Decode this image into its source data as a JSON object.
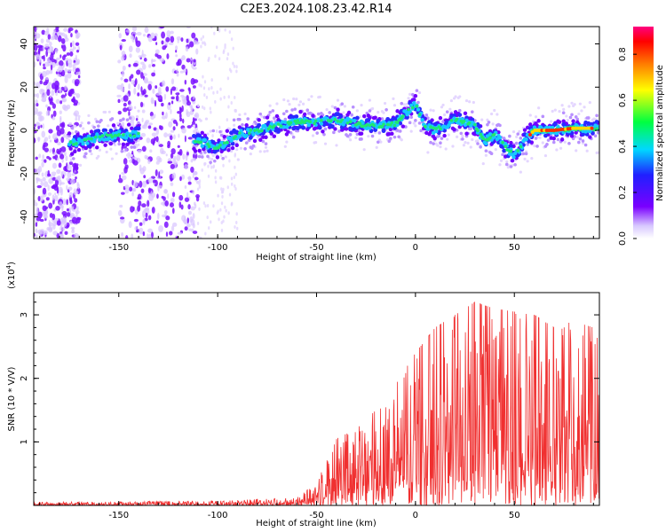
{
  "title": "C2E3.2024.108.23.42.R14",
  "chart_data": [
    {
      "type": "heatmap",
      "xlabel": "Height of straight line (km)",
      "ylabel": "Frequency (Hz)",
      "xlim": [
        -193,
        93
      ],
      "ylim": [
        -50,
        48
      ],
      "x_ticks": [
        -150,
        -100,
        -50,
        0,
        50
      ],
      "y_ticks": [
        -40,
        -20,
        0,
        20,
        40
      ],
      "colorbar": {
        "label": "Normalized spectral amplitude",
        "range": [
          0,
          0.92
        ],
        "ticks": [
          0.0,
          0.2,
          0.4,
          0.6,
          0.8
        ],
        "colormap": "rainbow"
      },
      "trace": {
        "x": [
          -172,
          -160,
          -150,
          -140,
          -110,
          -100,
          -90,
          -80,
          -70,
          -60,
          -50,
          -40,
          -30,
          -20,
          -10,
          -5,
          0,
          5,
          10,
          20,
          30,
          35,
          40,
          50,
          55,
          60,
          70,
          80,
          90
        ],
        "y": [
          -6,
          -3,
          -2,
          -2,
          -5,
          -8,
          -2,
          0,
          2,
          4,
          4,
          5,
          3,
          2,
          3,
          8,
          12,
          2,
          0,
          5,
          2,
          -5,
          -2,
          -12,
          -5,
          0,
          0,
          1,
          1
        ]
      },
      "background_regions_x": [
        [
          -193,
          -170
        ],
        [
          -150,
          -110
        ]
      ]
    },
    {
      "type": "line",
      "xlabel": "Height of straight line (km)",
      "ylabel": "SNR (10 * V/V)",
      "y_multiplier_label": "(x10",
      "y_multiplier_exponent": "4",
      "y_multiplier_close": ")",
      "xlim": [
        -193,
        93
      ],
      "ylim": [
        0,
        3.35
      ],
      "x_ticks": [
        -150,
        -100,
        -50,
        0,
        50
      ],
      "y_ticks": [
        1,
        2,
        3
      ],
      "color": "#f03030",
      "envelope": {
        "x": [
          -193,
          -100,
          -60,
          -50,
          -40,
          -30,
          -20,
          -10,
          0,
          10,
          20,
          30,
          40,
          50,
          60,
          70,
          80,
          90,
          93
        ],
        "y": [
          0.05,
          0.07,
          0.12,
          0.35,
          1.05,
          1.2,
          1.5,
          1.9,
          2.4,
          2.8,
          3.0,
          3.2,
          3.1,
          3.05,
          3.0,
          2.8,
          2.9,
          2.8,
          2.6
        ]
      }
    }
  ]
}
